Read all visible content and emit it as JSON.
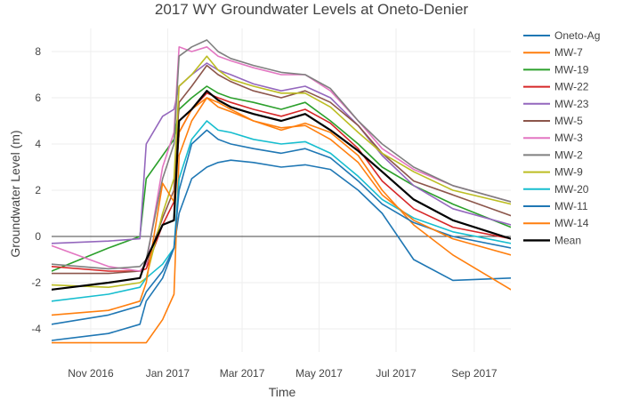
{
  "chart_data": {
    "type": "line",
    "title": "2017 WY Groundwater Levels at Oneto-Denier",
    "xlabel": "Time",
    "ylabel": "Groundwater Level (m)",
    "xlim": [
      "2016-10-01",
      "2017-09-30"
    ],
    "ylim": [
      -5,
      9
    ],
    "x_ticks": [
      {
        "date": "2016-11-01",
        "label": "Nov 2016"
      },
      {
        "date": "2017-01-01",
        "label": "Jan 2017"
      },
      {
        "date": "2017-03-01",
        "label": "Mar 2017"
      },
      {
        "date": "2017-05-01",
        "label": "May 2017"
      },
      {
        "date": "2017-07-01",
        "label": "Jul 2017"
      },
      {
        "date": "2017-09-01",
        "label": "Sep 2017"
      }
    ],
    "y_ticks": [
      -4,
      -2,
      0,
      2,
      4,
      6,
      8
    ],
    "grid": true,
    "zero_line": true,
    "legend_position": "right",
    "x": [
      "2016-10-01",
      "2016-11-15",
      "2016-12-10",
      "2016-12-15",
      "2016-12-28",
      "2017-01-06",
      "2017-01-10",
      "2017-01-20",
      "2017-02-01",
      "2017-02-10",
      "2017-02-20",
      "2017-03-10",
      "2017-04-01",
      "2017-04-20",
      "2017-05-10",
      "2017-06-01",
      "2017-06-20",
      "2017-07-15",
      "2017-08-15",
      "2017-09-30"
    ],
    "series": [
      {
        "name": "Oneto-Ag",
        "color": "#1f77b4",
        "values": [
          -4.5,
          -4.2,
          -3.8,
          -2.8,
          -1.8,
          -0.5,
          1.0,
          2.5,
          3.0,
          3.2,
          3.3,
          3.2,
          3.0,
          3.1,
          2.9,
          2.0,
          1.0,
          -1.0,
          -1.9,
          -1.8
        ]
      },
      {
        "name": "MW-7",
        "color": "#ff7f0e",
        "values": [
          -4.6,
          -4.6,
          -4.6,
          -4.6,
          -3.6,
          -2.5,
          3.5,
          5.0,
          6.0,
          5.8,
          5.5,
          5.0,
          4.6,
          4.9,
          4.5,
          3.5,
          2.0,
          0.5,
          -0.8,
          -2.3
        ]
      },
      {
        "name": "MW-19",
        "color": "#2ca02c",
        "values": [
          -1.5,
          -0.5,
          0.0,
          2.5,
          3.5,
          4.2,
          5.5,
          6.0,
          6.5,
          6.2,
          6.0,
          5.8,
          5.5,
          5.8,
          5.0,
          4.0,
          3.0,
          2.2,
          1.4,
          0.4
        ]
      },
      {
        "name": "MW-22",
        "color": "#d62728",
        "values": [
          -1.3,
          -1.5,
          -1.5,
          -1.4,
          0.5,
          1.5,
          4.5,
          5.5,
          6.2,
          6.0,
          5.8,
          5.5,
          5.2,
          5.5,
          4.9,
          3.8,
          2.4,
          1.2,
          0.4,
          -0.1
        ]
      },
      {
        "name": "MW-23",
        "color": "#9467bd",
        "values": [
          -0.3,
          -0.2,
          -0.1,
          4.0,
          5.2,
          5.5,
          6.5,
          7.0,
          7.5,
          7.2,
          7.0,
          6.6,
          6.3,
          6.5,
          6.0,
          4.8,
          3.5,
          2.2,
          1.2,
          0.5
        ]
      },
      {
        "name": "MW-5",
        "color": "#8c564b",
        "values": [
          -1.6,
          -1.6,
          -1.5,
          -1.2,
          0.8,
          2.0,
          5.8,
          6.5,
          7.4,
          7.0,
          6.7,
          6.3,
          6.0,
          6.3,
          5.8,
          4.8,
          3.6,
          2.4,
          1.8,
          0.9
        ]
      },
      {
        "name": "MW-3",
        "color": "#e377c2",
        "values": [
          -0.4,
          -1.3,
          -1.5,
          -1.2,
          3.0,
          4.5,
          8.2,
          8.0,
          8.2,
          7.8,
          7.6,
          7.3,
          7.0,
          7.0,
          6.3,
          5.0,
          3.8,
          2.9,
          2.2,
          1.5
        ]
      },
      {
        "name": "MW-2",
        "color": "#7f7f7f",
        "values": [
          -1.2,
          -1.4,
          -1.3,
          -1.0,
          2.5,
          4.0,
          7.8,
          8.2,
          8.5,
          8.0,
          7.7,
          7.4,
          7.1,
          7.0,
          6.4,
          5.0,
          4.0,
          3.0,
          2.2,
          1.5
        ]
      },
      {
        "name": "MW-9",
        "color": "#bcbd22",
        "values": [
          -2.1,
          -2.2,
          -2.0,
          -1.8,
          1.0,
          2.5,
          6.5,
          7.0,
          7.8,
          7.2,
          6.8,
          6.5,
          6.2,
          6.2,
          5.6,
          4.5,
          3.6,
          2.8,
          2.0,
          1.4
        ]
      },
      {
        "name": "MW-20",
        "color": "#17becf",
        "values": [
          -2.8,
          -2.5,
          -2.2,
          -1.8,
          -1.2,
          -0.5,
          2.5,
          4.2,
          5.0,
          4.6,
          4.5,
          4.2,
          4.0,
          4.1,
          3.6,
          2.6,
          1.6,
          0.8,
          0.2,
          -0.3
        ]
      },
      {
        "name": "MW-11",
        "color": "#1f77b4",
        "values": [
          -3.8,
          -3.4,
          -3.0,
          -2.4,
          -1.5,
          -0.5,
          2.0,
          4.0,
          4.6,
          4.2,
          4.0,
          3.8,
          3.6,
          3.8,
          3.4,
          2.4,
          1.4,
          0.6,
          0.0,
          -0.5
        ]
      },
      {
        "name": "MW-14",
        "color": "#ff7f0e",
        "values": [
          -3.4,
          -3.2,
          -2.8,
          -2.0,
          2.3,
          1.5,
          4.5,
          5.5,
          6.0,
          5.6,
          5.4,
          5.0,
          4.7,
          4.8,
          4.2,
          3.2,
          1.8,
          0.7,
          -0.1,
          -0.8
        ]
      },
      {
        "name": "Mean",
        "color": "#000000",
        "values": [
          -2.3,
          -2.0,
          -1.8,
          -1.0,
          0.5,
          0.7,
          5.0,
          5.5,
          6.3,
          5.9,
          5.6,
          5.3,
          5.0,
          5.3,
          4.6,
          3.7,
          2.8,
          1.6,
          0.7,
          -0.1
        ]
      }
    ]
  }
}
